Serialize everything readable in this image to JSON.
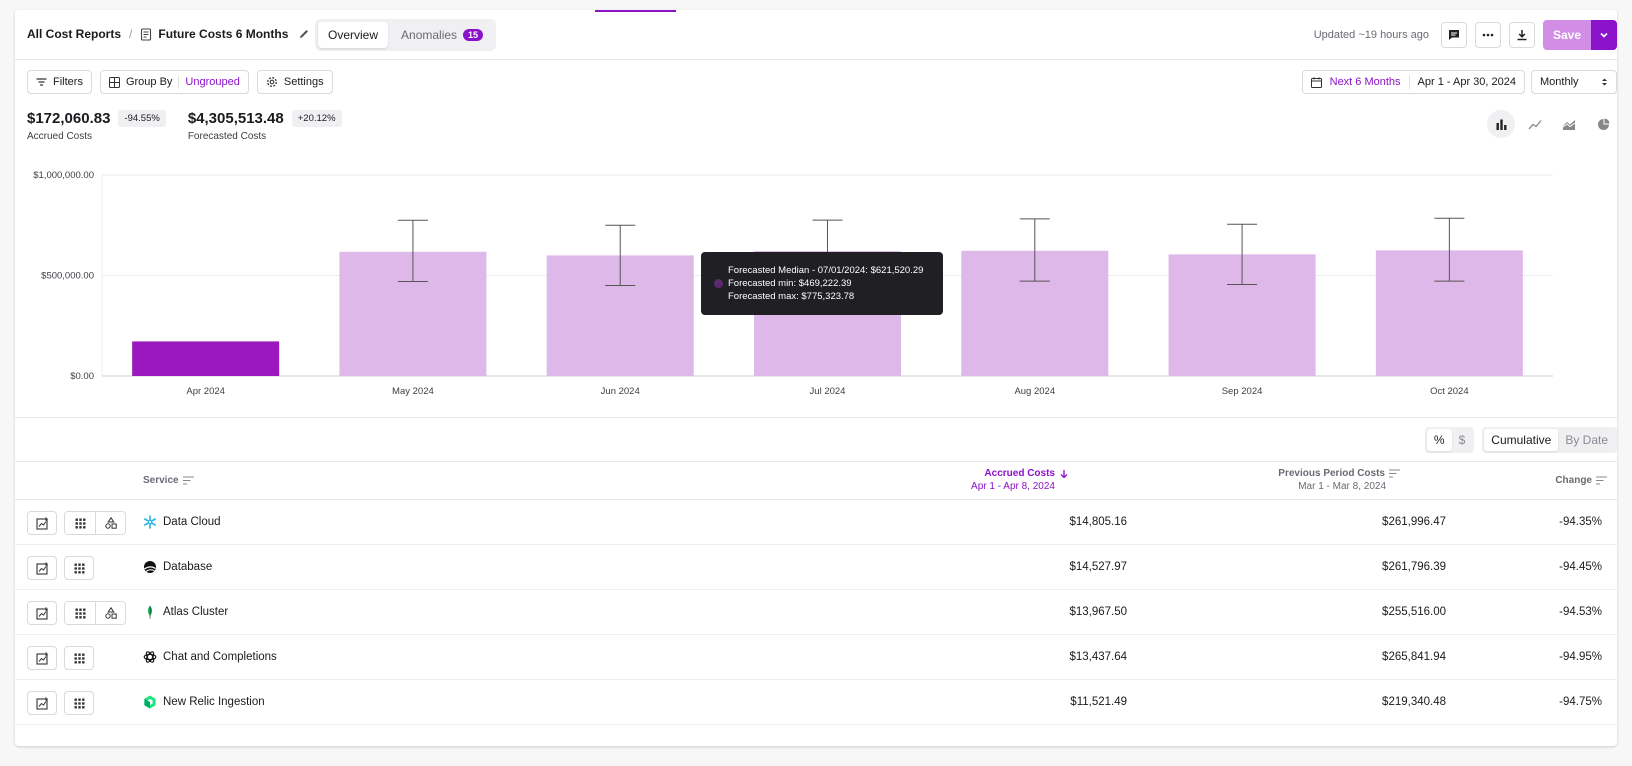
{
  "header": {
    "breadcrumb_root": "All Cost Reports",
    "breadcrumb_sep": "/",
    "report_title": "Future Costs 6 Months",
    "tabs": [
      {
        "label": "Overview"
      },
      {
        "label": "Anomalies",
        "badge": "15"
      }
    ],
    "updated": "Updated ~19 hours ago",
    "save_label": "Save"
  },
  "toolbar": {
    "filters": "Filters",
    "group_by": "Group By",
    "group_by_value": "Ungrouped",
    "settings": "Settings",
    "date_preset": "Next 6 Months",
    "date_range": "Apr 1 - Apr 30, 2024",
    "granularity": "Monthly"
  },
  "summary": {
    "accrued_value": "$172,060.83",
    "accrued_change": "-94.55%",
    "accrued_label": "Accrued Costs",
    "forecast_value": "$4,305,513.48",
    "forecast_change": "+20.12%",
    "forecast_label": "Forecasted Costs"
  },
  "chart_types": [
    "bar-chart-icon",
    "line-chart-icon",
    "area-chart-icon",
    "pie-chart-icon"
  ],
  "colors": {
    "accent": "#8b12c9",
    "forecast_bar": "#dfb8ea",
    "accrued_bar": "#9a18bd"
  },
  "chart_data": {
    "type": "bar",
    "categories": [
      "Apr 2024",
      "May 2024",
      "Jun 2024",
      "Jul 2024",
      "Aug 2024",
      "Sep 2024",
      "Oct 2024"
    ],
    "series": [
      {
        "values": [
          172060.83,
          null,
          null,
          null,
          null,
          null,
          null
        ]
      },
      {
        "values": [
          null,
          618000,
          600000,
          621520.29,
          623000,
          605000,
          625000
        ]
      }
    ],
    "error_min": [
      null,
      470000,
      450000,
      469222.39,
      472000,
      455000,
      472000
    ],
    "error_max": [
      null,
      775000,
      750000,
      775323.78,
      782000,
      755000,
      785000
    ],
    "yticks": [
      "$0.00",
      "$500,000.00",
      "$1,000,000.00"
    ],
    "ylim": [
      0,
      1000000
    ],
    "grid": true,
    "tooltip": {
      "line1": "Forecasted Median - 07/01/2024: $621,520.29",
      "line2": "Forecasted min: $469,222.39",
      "line3": "Forecasted max: $775,323.78"
    }
  },
  "table_controls": {
    "percent": "%",
    "dollar": "$",
    "cumulative": "Cumulative",
    "by_date": "By Date"
  },
  "table": {
    "columns": {
      "service": "Service",
      "accrued": "Accrued Costs",
      "accrued_sub": "Apr 1 - Apr 8, 2024",
      "previous": "Previous Period Costs",
      "previous_sub": "Mar 1 - Mar 8, 2024",
      "change": "Change"
    },
    "rows": [
      {
        "service": "Data Cloud",
        "accrued": "$14,805.16",
        "previous": "$261,996.47",
        "change": "-94.35%"
      },
      {
        "service": "Database",
        "accrued": "$14,527.97",
        "previous": "$261,796.39",
        "change": "-94.45%"
      },
      {
        "service": "Atlas Cluster",
        "accrued": "$13,967.50",
        "previous": "$255,516.00",
        "change": "-94.53%"
      },
      {
        "service": "Chat and Completions",
        "accrued": "$13,437.64",
        "previous": "$265,841.94",
        "change": "-94.95%"
      },
      {
        "service": "New Relic Ingestion",
        "accrued": "$11,521.49",
        "previous": "$219,340.48",
        "change": "-94.75%"
      }
    ]
  }
}
